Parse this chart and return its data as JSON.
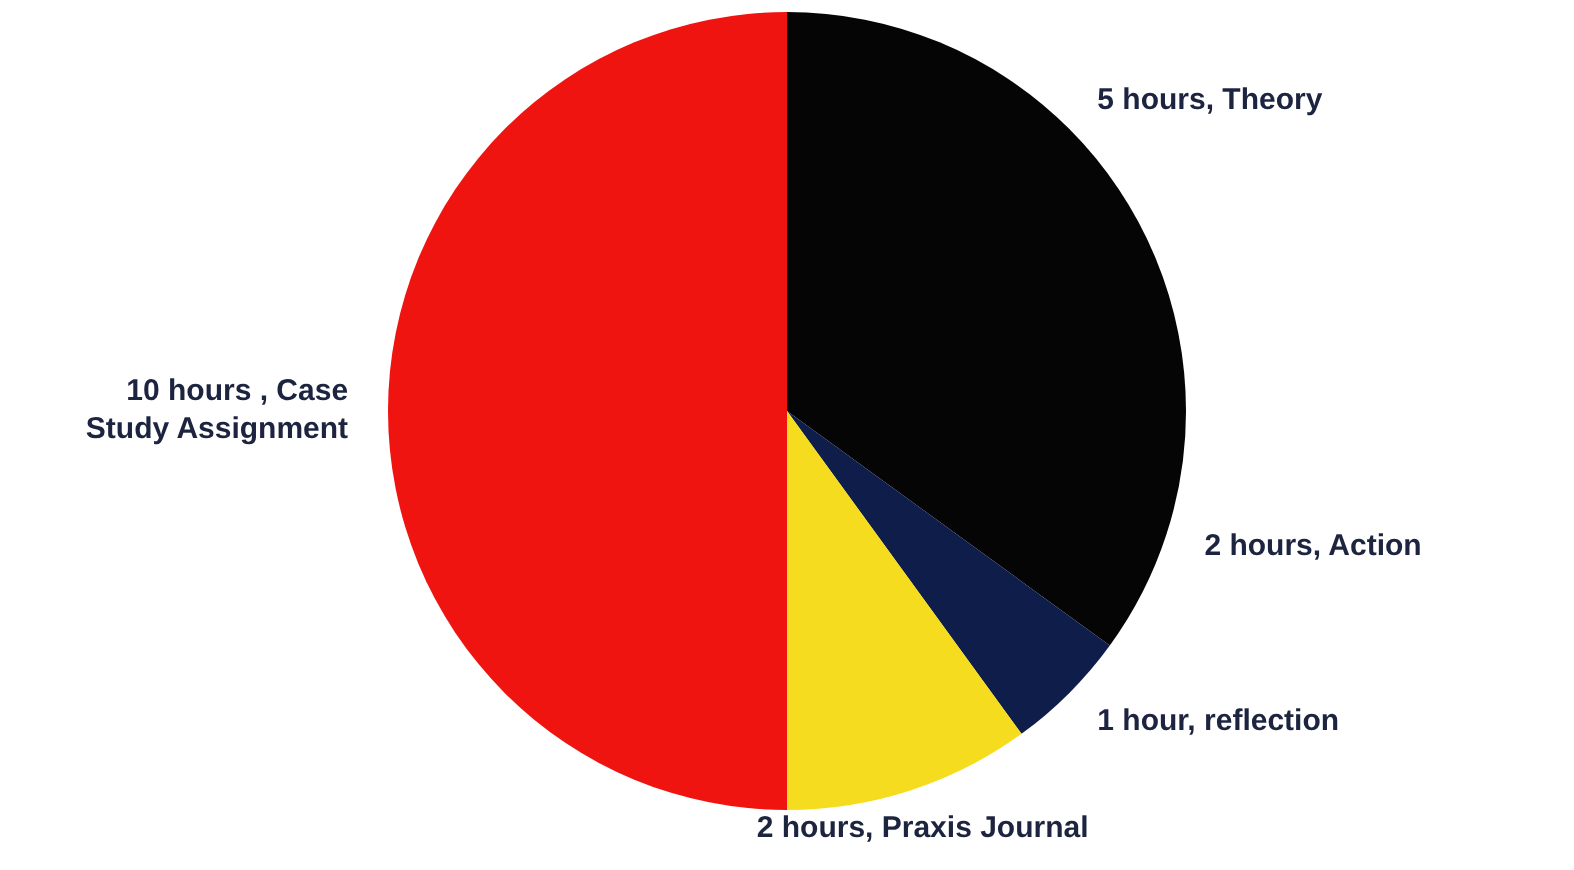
{
  "chart_data": {
    "type": "pie",
    "categories": [
      "5 hours, Theory",
      "2 hours, Action",
      "1 hour, reflection",
      "2 hours, Praxis Journal",
      "10 hours , Case Study Assignment"
    ],
    "values": [
      5,
      2,
      1,
      2,
      10
    ],
    "colors": [
      "#050505",
      "#050505",
      "#0f1d4a",
      "#f5dc1e",
      "#f01410"
    ],
    "legend": false
  }
}
